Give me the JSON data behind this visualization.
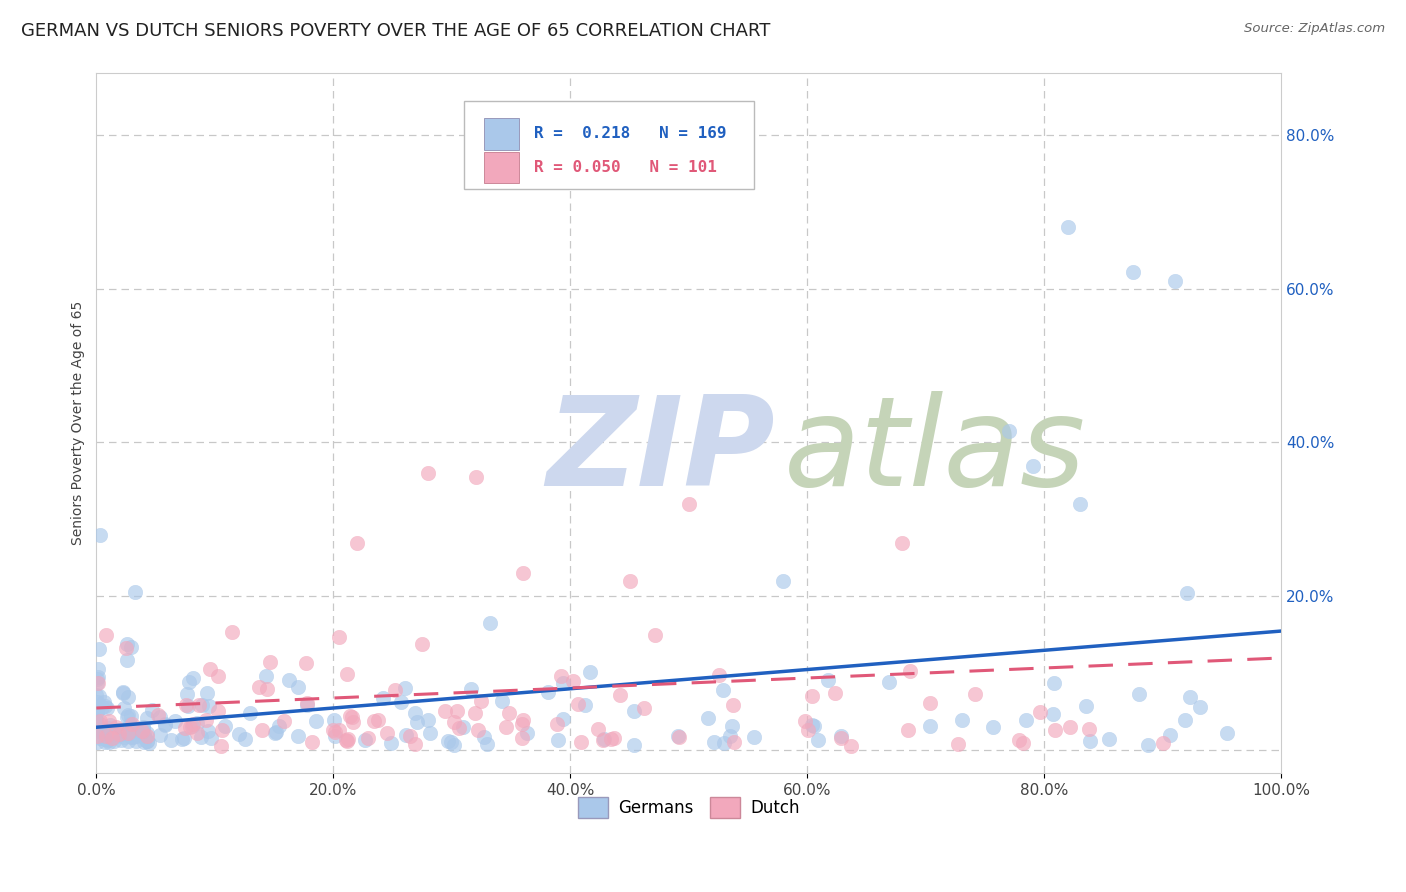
{
  "title": "GERMAN VS DUTCH SENIORS POVERTY OVER THE AGE OF 65 CORRELATION CHART",
  "source": "Source: ZipAtlas.com",
  "ylabel": "Seniors Poverty Over the Age of 65",
  "xlim": [
    0,
    1
  ],
  "ylim": [
    -0.03,
    0.88
  ],
  "xticks": [
    0.0,
    0.2,
    0.4,
    0.6,
    0.8,
    1.0
  ],
  "yticks_right": [
    0.2,
    0.4,
    0.6,
    0.8
  ],
  "german_color": "#aac8ea",
  "dutch_color": "#f2a8bc",
  "german_line_color": "#2060c0",
  "dutch_line_color": "#e05878",
  "watermark_zip": "ZIP",
  "watermark_atlas": "atlas",
  "watermark_color_zip": "#ccd8ee",
  "watermark_color_atlas": "#c8d8c0",
  "background_color": "#ffffff",
  "grid_color": "#c8c8c8",
  "title_fontsize": 13,
  "label_fontsize": 10,
  "tick_fontsize": 11,
  "right_tick_color": "#2060c0",
  "german_line_intercept": 0.03,
  "german_line_slope": 0.125,
  "dutch_line_intercept": 0.055,
  "dutch_line_slope": 0.065
}
